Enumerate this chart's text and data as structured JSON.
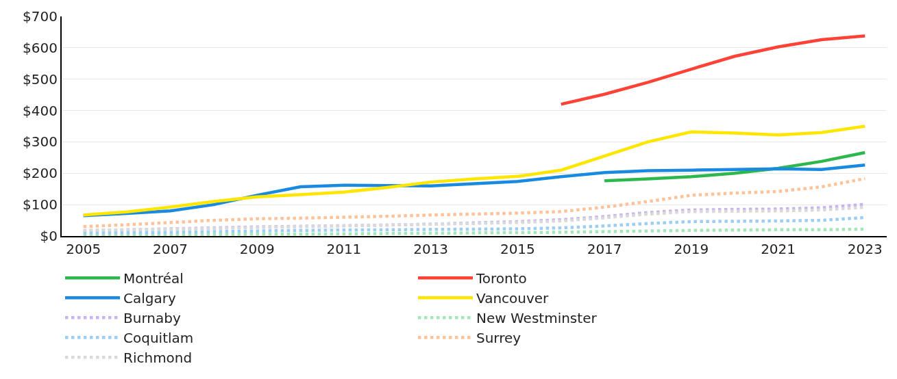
{
  "chart_data": {
    "type": "line",
    "x": [
      2005,
      2006,
      2007,
      2008,
      2009,
      2010,
      2011,
      2012,
      2013,
      2014,
      2015,
      2016,
      2017,
      2018,
      2019,
      2020,
      2021,
      2022,
      2023
    ],
    "xlim": [
      2004.5,
      2023.5
    ],
    "xticks": [
      2005,
      2007,
      2009,
      2011,
      2013,
      2015,
      2017,
      2019,
      2021,
      2023
    ],
    "ylim": [
      0,
      700
    ],
    "yticks": [
      {
        "value": 0,
        "label": "$0"
      },
      {
        "value": 100,
        "label": "$100"
      },
      {
        "value": 200,
        "label": "$200"
      },
      {
        "value": 300,
        "label": "$300"
      },
      {
        "value": 400,
        "label": "$400"
      },
      {
        "value": 500,
        "label": "$500"
      },
      {
        "value": 600,
        "label": "$600"
      },
      {
        "value": 700,
        "label": "$700"
      }
    ],
    "grid": "y",
    "legend": "bottom",
    "marker": "none",
    "series": [
      {
        "name": "Montréal",
        "color": "#2db84d",
        "line_style": "solid",
        "values": [
          null,
          null,
          null,
          null,
          null,
          null,
          null,
          null,
          null,
          null,
          null,
          null,
          176,
          182,
          189,
          200,
          216,
          238,
          266
        ]
      },
      {
        "name": "Toronto",
        "color": "#ff4136",
        "line_style": "solid",
        "values": [
          null,
          null,
          null,
          null,
          null,
          null,
          null,
          null,
          null,
          null,
          null,
          420,
          452,
          490,
          532,
          573,
          603,
          626,
          638
        ]
      },
      {
        "name": "Calgary",
        "color": "#1a8ae0",
        "line_style": "solid",
        "values": [
          65,
          72,
          80,
          100,
          130,
          157,
          162,
          161,
          160,
          167,
          174,
          189,
          202,
          208,
          210,
          212,
          214,
          212,
          226
        ]
      },
      {
        "name": "Vancouver",
        "color": "#ffe600",
        "line_style": "solid",
        "values": [
          67,
          77,
          92,
          110,
          125,
          132,
          140,
          155,
          172,
          182,
          190,
          210,
          255,
          300,
          332,
          328,
          322,
          330,
          350
        ]
      },
      {
        "name": "Burnaby",
        "color": "#c9b3f2",
        "line_style": "dotted",
        "values": [
          17,
          20,
          23,
          26,
          29,
          31,
          33,
          35,
          38,
          42,
          46,
          52,
          62,
          75,
          83,
          85,
          86,
          90,
          101
        ]
      },
      {
        "name": "New Westminster",
        "color": "#a3e6b8",
        "line_style": "dotted",
        "values": [
          3,
          3,
          4,
          5,
          6,
          6,
          7,
          8,
          9,
          10,
          11,
          12,
          14,
          16,
          18,
          19,
          20,
          20,
          22
        ]
      },
      {
        "name": "Coquitlam",
        "color": "#9ccdf5",
        "line_style": "dotted",
        "values": [
          10,
          11,
          12,
          14,
          16,
          18,
          19,
          20,
          21,
          22,
          23,
          26,
          32,
          40,
          46,
          47,
          48,
          50,
          59
        ]
      },
      {
        "name": "Surrey",
        "color": "#ffc299",
        "line_style": "dotted",
        "values": [
          30,
          36,
          43,
          50,
          55,
          57,
          60,
          63,
          67,
          70,
          73,
          78,
          92,
          110,
          130,
          137,
          142,
          157,
          183
        ]
      },
      {
        "name": "Richmond",
        "color": "#d9d9d9",
        "line_style": "dotted",
        "values": [
          18,
          20,
          22,
          24,
          27,
          30,
          32,
          35,
          38,
          40,
          43,
          48,
          58,
          70,
          78,
          79,
          80,
          83,
          92
        ]
      }
    ]
  }
}
